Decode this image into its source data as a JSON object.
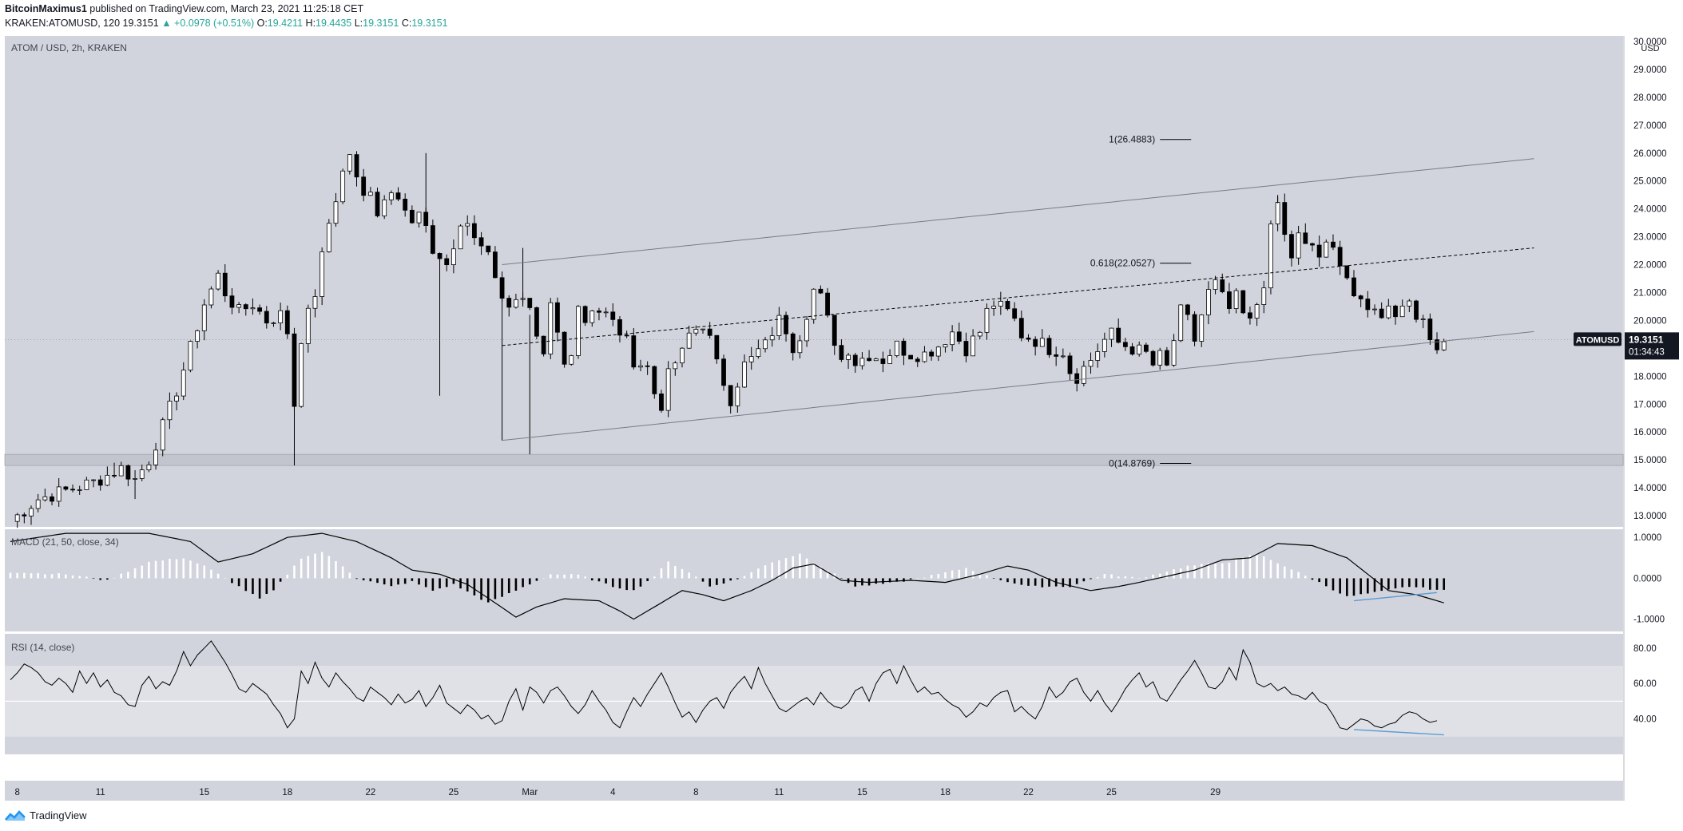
{
  "header": {
    "author": "BitcoinMaximus1",
    "published_text": "published on TradingView.com, March 23, 2021 11:25:18 CET",
    "symbol_text": "KRAKEN:ATOMUSD, 120",
    "last": "19.3151",
    "change": "▲ +0.0978 (+0.51%)",
    "o_label": "O:",
    "o": "19.4211",
    "h_label": "H:",
    "h": "19.4435",
    "l_label": "L:",
    "l": "19.3151",
    "c_label": "C:",
    "c": "19.3151"
  },
  "footer": {
    "brand": "TradingView",
    "logo_icon": "tradingview-logo-icon"
  },
  "colors": {
    "pane_bg": "#d1d4dc",
    "candle": "#000000",
    "rsi_band": "#dfe1e6",
    "badge_bg": "#131722",
    "highlight": "#5b9bd5"
  },
  "chart_data": [
    {
      "type": "candlestick",
      "title": "ATOM / USD, 2h, KRAKEN",
      "axis_unit": "USD",
      "ylim": [
        12.6,
        30.2
      ],
      "y_ticks": [
        "30.0000",
        "29.0000",
        "28.0000",
        "27.0000",
        "26.0000",
        "25.0000",
        "24.0000",
        "23.0000",
        "22.0000",
        "21.0000",
        "20.0000",
        "19.0000",
        "18.0000",
        "17.0000",
        "16.0000",
        "15.0000",
        "14.0000",
        "13.0000"
      ],
      "x_tick_labels": [
        "8",
        "11",
        "15",
        "18",
        "22",
        "25",
        "Mar",
        "4",
        "8",
        "11",
        "15",
        "18",
        "22",
        "25",
        "29"
      ],
      "last_price": {
        "symbol": "ATOMUSD",
        "price": "19.3151",
        "countdown": "01:34:43",
        "value": 19.3151
      },
      "close_path": [
        [
          0,
          12.8
        ],
        [
          4,
          13.6
        ],
        [
          8,
          13.9
        ],
        [
          12,
          14.2
        ],
        [
          16,
          14.7
        ],
        [
          18,
          14.3
        ],
        [
          20,
          15.0
        ],
        [
          22,
          16.2
        ],
        [
          24,
          17.5
        ],
        [
          26,
          19.0
        ],
        [
          28,
          20.6
        ],
        [
          30,
          21.6
        ],
        [
          31,
          21.0
        ],
        [
          33,
          20.3
        ],
        [
          35,
          20.6
        ],
        [
          37,
          20.0
        ],
        [
          39,
          20.2
        ],
        [
          40,
          19.6
        ],
        [
          41,
          17.0
        ],
        [
          42,
          19.4
        ],
        [
          44,
          21.0
        ],
        [
          46,
          23.5
        ],
        [
          48,
          25.3
        ],
        [
          49,
          26.0
        ],
        [
          50,
          25.0
        ],
        [
          51,
          24.4
        ],
        [
          52,
          24.8
        ],
        [
          53,
          23.9
        ],
        [
          55,
          24.8
        ],
        [
          56,
          24.6
        ],
        [
          58,
          23.4
        ],
        [
          59,
          23.8
        ],
        [
          61,
          22.5
        ],
        [
          63,
          22.0
        ],
        [
          65,
          23.2
        ],
        [
          66,
          23.5
        ],
        [
          67,
          23.0
        ],
        [
          69,
          22.6
        ],
        [
          70,
          21.4
        ],
        [
          72,
          20.6
        ],
        [
          74,
          20.6
        ],
        [
          75,
          20.2
        ],
        [
          76,
          19.2
        ],
        [
          77,
          18.6
        ],
        [
          78,
          20.5
        ],
        [
          79,
          19.5
        ],
        [
          80,
          18.4
        ],
        [
          81,
          19.0
        ],
        [
          82,
          20.6
        ],
        [
          83,
          20.0
        ],
        [
          84,
          20.5
        ],
        [
          86,
          20.2
        ],
        [
          88,
          19.6
        ],
        [
          89,
          19.2
        ],
        [
          90,
          18.6
        ],
        [
          92,
          18.3
        ],
        [
          93,
          17.4
        ],
        [
          94,
          17.0
        ],
        [
          95,
          18.0
        ],
        [
          96,
          18.5
        ],
        [
          97,
          18.8
        ],
        [
          98,
          19.5
        ],
        [
          100,
          19.9
        ],
        [
          101,
          19.3
        ],
        [
          102,
          18.4
        ],
        [
          103,
          17.8
        ],
        [
          104,
          17.2
        ],
        [
          105,
          17.8
        ],
        [
          106,
          18.4
        ],
        [
          107,
          18.6
        ],
        [
          108,
          18.9
        ],
        [
          109,
          19.1
        ],
        [
          110,
          19.6
        ],
        [
          111,
          20.0
        ],
        [
          112,
          19.7
        ],
        [
          113,
          19.1
        ],
        [
          114,
          19.5
        ],
        [
          115,
          20.3
        ],
        [
          116,
          21.1
        ],
        [
          117,
          20.8
        ],
        [
          118,
          20.0
        ],
        [
          119,
          19.3
        ],
        [
          120,
          18.6
        ],
        [
          121,
          19.0
        ],
        [
          122,
          18.5
        ],
        [
          124,
          18.8
        ],
        [
          126,
          18.6
        ],
        [
          128,
          19.1
        ],
        [
          130,
          18.8
        ],
        [
          132,
          18.8
        ],
        [
          134,
          19.1
        ],
        [
          136,
          19.6
        ],
        [
          138,
          19.0
        ],
        [
          140,
          19.6
        ],
        [
          141,
          20.3
        ],
        [
          142,
          20.6
        ],
        [
          144,
          20.3
        ],
        [
          145,
          20.0
        ],
        [
          146,
          19.5
        ],
        [
          148,
          19.3
        ],
        [
          150,
          19.0
        ],
        [
          152,
          18.9
        ],
        [
          153,
          18.2
        ],
        [
          154,
          18.0
        ],
        [
          155,
          18.3
        ],
        [
          156,
          18.6
        ],
        [
          158,
          19.3
        ],
        [
          159,
          19.5
        ],
        [
          160,
          19.2
        ],
        [
          162,
          19.0
        ],
        [
          164,
          18.8
        ],
        [
          165,
          18.4
        ],
        [
          166,
          18.7
        ],
        [
          167,
          18.3
        ],
        [
          168,
          19.3
        ],
        [
          169,
          20.3
        ],
        [
          170,
          20.0
        ],
        [
          171,
          19.3
        ],
        [
          172,
          20.2
        ],
        [
          173,
          21.0
        ],
        [
          174,
          21.3
        ],
        [
          175,
          20.8
        ],
        [
          176,
          20.4
        ],
        [
          177,
          20.8
        ],
        [
          178,
          20.2
        ],
        [
          179,
          19.9
        ],
        [
          180,
          20.6
        ],
        [
          181,
          21.4
        ],
        [
          182,
          23.2
        ],
        [
          183,
          24.2
        ],
        [
          184,
          23.0
        ],
        [
          185,
          22.3
        ],
        [
          186,
          23.0
        ],
        [
          187,
          22.6
        ],
        [
          188,
          22.7
        ],
        [
          189,
          22.3
        ],
        [
          190,
          22.6
        ],
        [
          191,
          22.5
        ],
        [
          192,
          22.2
        ],
        [
          193,
          21.6
        ],
        [
          194,
          20.9
        ],
        [
          195,
          20.5
        ],
        [
          196,
          20.3
        ],
        [
          197,
          20.6
        ],
        [
          198,
          20.0
        ],
        [
          199,
          20.7
        ],
        [
          200,
          20.3
        ],
        [
          201,
          20.5
        ],
        [
          202,
          20.8
        ],
        [
          203,
          20.3
        ],
        [
          204,
          19.8
        ],
        [
          205,
          19.3
        ],
        [
          206,
          19.2
        ],
        [
          207,
          19.3
        ]
      ],
      "wick_spikes": [
        [
          15,
          14.9
        ],
        [
          18,
          13.6
        ],
        [
          41,
          14.8
        ],
        [
          60,
          26.0
        ],
        [
          62,
          17.3
        ],
        [
          71,
          15.7
        ],
        [
          74,
          22.6
        ],
        [
          75,
          15.2
        ],
        [
          183,
          24.5
        ],
        [
          206,
          18.8
        ]
      ],
      "channel": {
        "upper": [
          [
            71,
            22.0
          ],
          [
            220,
            25.8
          ]
        ],
        "middle": [
          [
            71,
            19.1
          ],
          [
            220,
            22.6
          ]
        ],
        "lower": [
          [
            71,
            15.7
          ],
          [
            220,
            19.6
          ]
        ]
      },
      "support_zone": [
        14.8,
        15.2
      ],
      "fibonacci": [
        {
          "label": "1(26.4883)",
          "value": 26.4883
        },
        {
          "label": "0.618(22.0527)",
          "value": 22.0527
        },
        {
          "label": "0(14.8769)",
          "value": 14.8769
        }
      ]
    },
    {
      "type": "histogram",
      "title": "MACD (21, 50, close, 34)",
      "ylim": [
        -1.3,
        1.2
      ],
      "y_ticks": [
        "1.0000",
        "0.0000",
        "-1.0000"
      ],
      "hist_path": [
        [
          0,
          0.15
        ],
        [
          8,
          0.1
        ],
        [
          14,
          -0.05
        ],
        [
          20,
          0.4
        ],
        [
          25,
          0.5
        ],
        [
          28,
          0.3
        ],
        [
          33,
          -0.2
        ],
        [
          36,
          -0.5
        ],
        [
          38,
          -0.3
        ],
        [
          42,
          0.5
        ],
        [
          45,
          0.65
        ],
        [
          48,
          0.3
        ],
        [
          50,
          0.0
        ],
        [
          55,
          -0.2
        ],
        [
          58,
          -0.08
        ],
        [
          61,
          -0.3
        ],
        [
          64,
          -0.15
        ],
        [
          69,
          -0.6
        ],
        [
          73,
          -0.3
        ],
        [
          78,
          0.1
        ],
        [
          82,
          0.08
        ],
        [
          87,
          -0.2
        ],
        [
          90,
          -0.3
        ],
        [
          93,
          0.05
        ],
        [
          95,
          0.4
        ],
        [
          98,
          0.15
        ],
        [
          101,
          -0.2
        ],
        [
          105,
          -0.02
        ],
        [
          110,
          0.4
        ],
        [
          114,
          0.6
        ],
        [
          117,
          0.3
        ],
        [
          122,
          -0.2
        ],
        [
          128,
          -0.1
        ],
        [
          134,
          0.1
        ],
        [
          138,
          0.25
        ],
        [
          142,
          0.0
        ],
        [
          147,
          -0.2
        ],
        [
          153,
          -0.2
        ],
        [
          158,
          0.1
        ],
        [
          163,
          0.0
        ],
        [
          170,
          0.3
        ],
        [
          176,
          0.4
        ],
        [
          180,
          0.6
        ],
        [
          184,
          0.3
        ],
        [
          189,
          -0.1
        ],
        [
          193,
          -0.45
        ],
        [
          197,
          -0.35
        ],
        [
          202,
          -0.2
        ],
        [
          207,
          -0.3
        ]
      ],
      "line_path": [
        [
          0,
          0.9
        ],
        [
          8,
          1.1
        ],
        [
          20,
          1.1
        ],
        [
          26,
          0.9
        ],
        [
          30,
          0.4
        ],
        [
          35,
          0.6
        ],
        [
          40,
          1.0
        ],
        [
          45,
          1.1
        ],
        [
          50,
          0.9
        ],
        [
          55,
          0.5
        ],
        [
          58,
          0.2
        ],
        [
          62,
          0.1
        ],
        [
          66,
          -0.15
        ],
        [
          70,
          -0.6
        ],
        [
          73,
          -0.95
        ],
        [
          76,
          -0.7
        ],
        [
          80,
          -0.5
        ],
        [
          85,
          -0.55
        ],
        [
          88,
          -0.8
        ],
        [
          90,
          -1.0
        ],
        [
          93,
          -0.7
        ],
        [
          97,
          -0.3
        ],
        [
          100,
          -0.4
        ],
        [
          103,
          -0.55
        ],
        [
          107,
          -0.3
        ],
        [
          110,
          -0.05
        ],
        [
          113,
          0.25
        ],
        [
          116,
          0.35
        ],
        [
          120,
          -0.05
        ],
        [
          124,
          -0.1
        ],
        [
          130,
          -0.05
        ],
        [
          135,
          -0.1
        ],
        [
          140,
          0.1
        ],
        [
          144,
          0.3
        ],
        [
          147,
          0.2
        ],
        [
          151,
          -0.1
        ],
        [
          156,
          -0.3
        ],
        [
          160,
          -0.2
        ],
        [
          163,
          -0.1
        ],
        [
          167,
          0.05
        ],
        [
          171,
          0.2
        ],
        [
          175,
          0.45
        ],
        [
          179,
          0.5
        ],
        [
          183,
          0.85
        ],
        [
          188,
          0.8
        ],
        [
          193,
          0.5
        ],
        [
          196,
          0.1
        ],
        [
          199,
          -0.3
        ],
        [
          203,
          -0.4
        ],
        [
          207,
          -0.6
        ]
      ],
      "divergence_line": [
        [
          194,
          -0.55
        ],
        [
          206,
          -0.35
        ]
      ]
    },
    {
      "type": "line",
      "title": "RSI (14, close)",
      "ylim": [
        20,
        88
      ],
      "band": [
        30,
        70
      ],
      "y_ticks": [
        "80.00",
        "60.00",
        "40.00"
      ],
      "values": [
        62,
        66,
        71,
        69,
        66,
        61,
        59,
        63,
        60,
        55,
        67,
        60,
        66,
        58,
        62,
        55,
        53,
        48,
        47,
        59,
        64,
        57,
        61,
        59,
        67,
        78,
        70,
        76,
        80,
        84,
        78,
        72,
        65,
        57,
        55,
        60,
        57,
        54,
        48,
        43,
        35,
        40,
        67,
        60,
        72,
        63,
        58,
        66,
        61,
        57,
        52,
        50,
        58,
        55,
        52,
        48,
        54,
        49,
        51,
        56,
        47,
        52,
        59,
        49,
        46,
        43,
        48,
        45,
        40,
        42,
        37,
        39,
        50,
        57,
        45,
        58,
        55,
        49,
        56,
        58,
        53,
        47,
        43,
        48,
        56,
        50,
        45,
        38,
        35,
        44,
        52,
        47,
        54,
        60,
        66,
        58,
        49,
        41,
        44,
        38,
        45,
        50,
        52,
        46,
        55,
        60,
        64,
        57,
        69,
        60,
        53,
        46,
        44,
        47,
        50,
        52,
        48,
        55,
        50,
        47,
        46,
        49,
        56,
        58,
        50,
        60,
        66,
        68,
        60,
        70,
        62,
        55,
        58,
        54,
        55,
        51,
        48,
        46,
        41,
        44,
        49,
        47,
        52,
        55,
        56,
        44,
        47,
        43,
        40,
        47,
        58,
        52,
        55,
        61,
        63,
        55,
        50,
        56,
        49,
        44,
        50,
        57,
        62,
        66,
        58,
        61,
        52,
        50,
        56,
        62,
        67,
        73,
        66,
        58,
        57,
        61,
        69,
        62,
        79,
        72,
        60,
        58,
        60,
        56,
        58,
        54,
        53,
        51,
        55,
        50,
        48,
        42,
        35,
        34,
        37,
        40,
        39,
        36,
        35,
        37,
        38,
        42,
        44,
        43,
        40,
        38,
        39
      ]
    }
  ]
}
